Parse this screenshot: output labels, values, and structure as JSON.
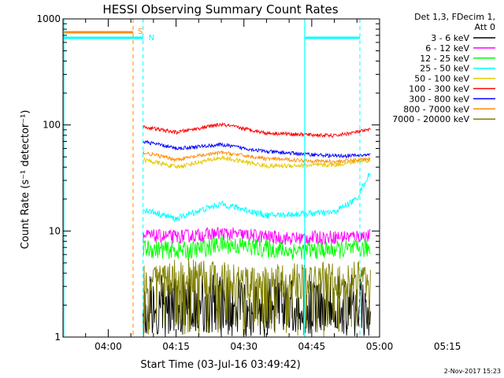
{
  "chart_data": {
    "type": "line",
    "title": "HESSI Observing Summary Count Rates",
    "xlabel": "Start Time (03-Jul-16 03:49:42)",
    "ylabel": "Count Rate (s⁻¹ detector⁻¹)",
    "yscale": "log",
    "xlim_minutes_after_0350": [
      0,
      70
    ],
    "ylim": [
      1,
      1000
    ],
    "x_ticks": [
      "04:00",
      "04:15",
      "04:30",
      "04:45",
      "05:00",
      "05:15"
    ],
    "y_ticks": [
      "1",
      "10",
      "100",
      "1000"
    ],
    "legend_header": [
      "Det 1,3, FDecim 1,",
      "Att 0"
    ],
    "legend_position": "right",
    "footer_date": "2-Nov-2017 15:23",
    "markers": [
      {
        "label": "S",
        "color": "#ff8c00",
        "style": "dashed",
        "x_min": 0.0,
        "x_min_end": 15.5
      },
      {
        "label": "N",
        "color": "#00ffff",
        "style": "solid",
        "x_min": 0.0,
        "x_min_end": 17.7
      }
    ],
    "series": [
      {
        "name": "3 - 6 keV",
        "color": "#000000",
        "baseline": [
          [
            17.7,
            2.5
          ],
          [
            40,
            2.5
          ],
          [
            55,
            2.3
          ],
          [
            68,
            2.6
          ]
        ],
        "noise": 0.45,
        "drop": 0.35
      },
      {
        "name": "6 - 12 keV",
        "color": "#ff00ff",
        "baseline": [
          [
            17.7,
            9.0
          ],
          [
            25,
            8.8
          ],
          [
            35,
            9.5
          ],
          [
            50,
            8.5
          ],
          [
            68,
            9.0
          ]
        ],
        "noise": 0.15,
        "drop": 0
      },
      {
        "name": "12 - 25 keV",
        "color": "#00ff00",
        "baseline": [
          [
            17.7,
            6.8
          ],
          [
            28,
            6.5
          ],
          [
            35,
            7.5
          ],
          [
            50,
            6.5
          ],
          [
            68,
            6.8
          ]
        ],
        "noise": 0.2,
        "drop": 0
      },
      {
        "name": "25 - 50 keV",
        "color": "#00ffff",
        "baseline": [
          [
            17.7,
            16
          ],
          [
            25,
            13
          ],
          [
            35,
            18
          ],
          [
            45,
            14
          ],
          [
            60,
            15
          ],
          [
            65,
            20
          ],
          [
            68,
            35
          ]
        ],
        "noise": 0.07,
        "drop": 0
      },
      {
        "name": "50 - 100 keV",
        "color": "#e6c800",
        "baseline": [
          [
            17.7,
            47
          ],
          [
            25,
            40
          ],
          [
            35,
            49
          ],
          [
            45,
            41
          ],
          [
            60,
            42
          ],
          [
            68,
            47
          ]
        ],
        "noise": 0.05,
        "drop": 0
      },
      {
        "name": "100 - 300 keV",
        "color": "#ff0000",
        "baseline": [
          [
            17.7,
            96
          ],
          [
            25,
            85
          ],
          [
            35,
            101
          ],
          [
            45,
            84
          ],
          [
            60,
            79
          ],
          [
            68,
            90
          ]
        ],
        "noise": 0.04,
        "drop": 0
      },
      {
        "name": "300 - 800 keV",
        "color": "#0000ff",
        "baseline": [
          [
            17.7,
            70
          ],
          [
            25,
            60
          ],
          [
            35,
            65
          ],
          [
            45,
            56
          ],
          [
            60,
            51
          ],
          [
            68,
            52
          ]
        ],
        "noise": 0.04,
        "drop": 0
      },
      {
        "name": "800 - 7000 keV",
        "color": "#ff8c00",
        "baseline": [
          [
            17.7,
            55
          ],
          [
            25,
            47
          ],
          [
            35,
            55
          ],
          [
            45,
            48
          ],
          [
            60,
            45
          ],
          [
            68,
            48
          ]
        ],
        "noise": 0.04,
        "drop": 0
      },
      {
        "name": "7000 - 20000 keV",
        "color": "#808000",
        "baseline": [
          [
            17.7,
            3.5
          ],
          [
            30,
            3.8
          ],
          [
            40,
            3.2
          ],
          [
            68,
            3.6
          ]
        ],
        "noise": 0.4,
        "drop": 0.15
      }
    ]
  }
}
